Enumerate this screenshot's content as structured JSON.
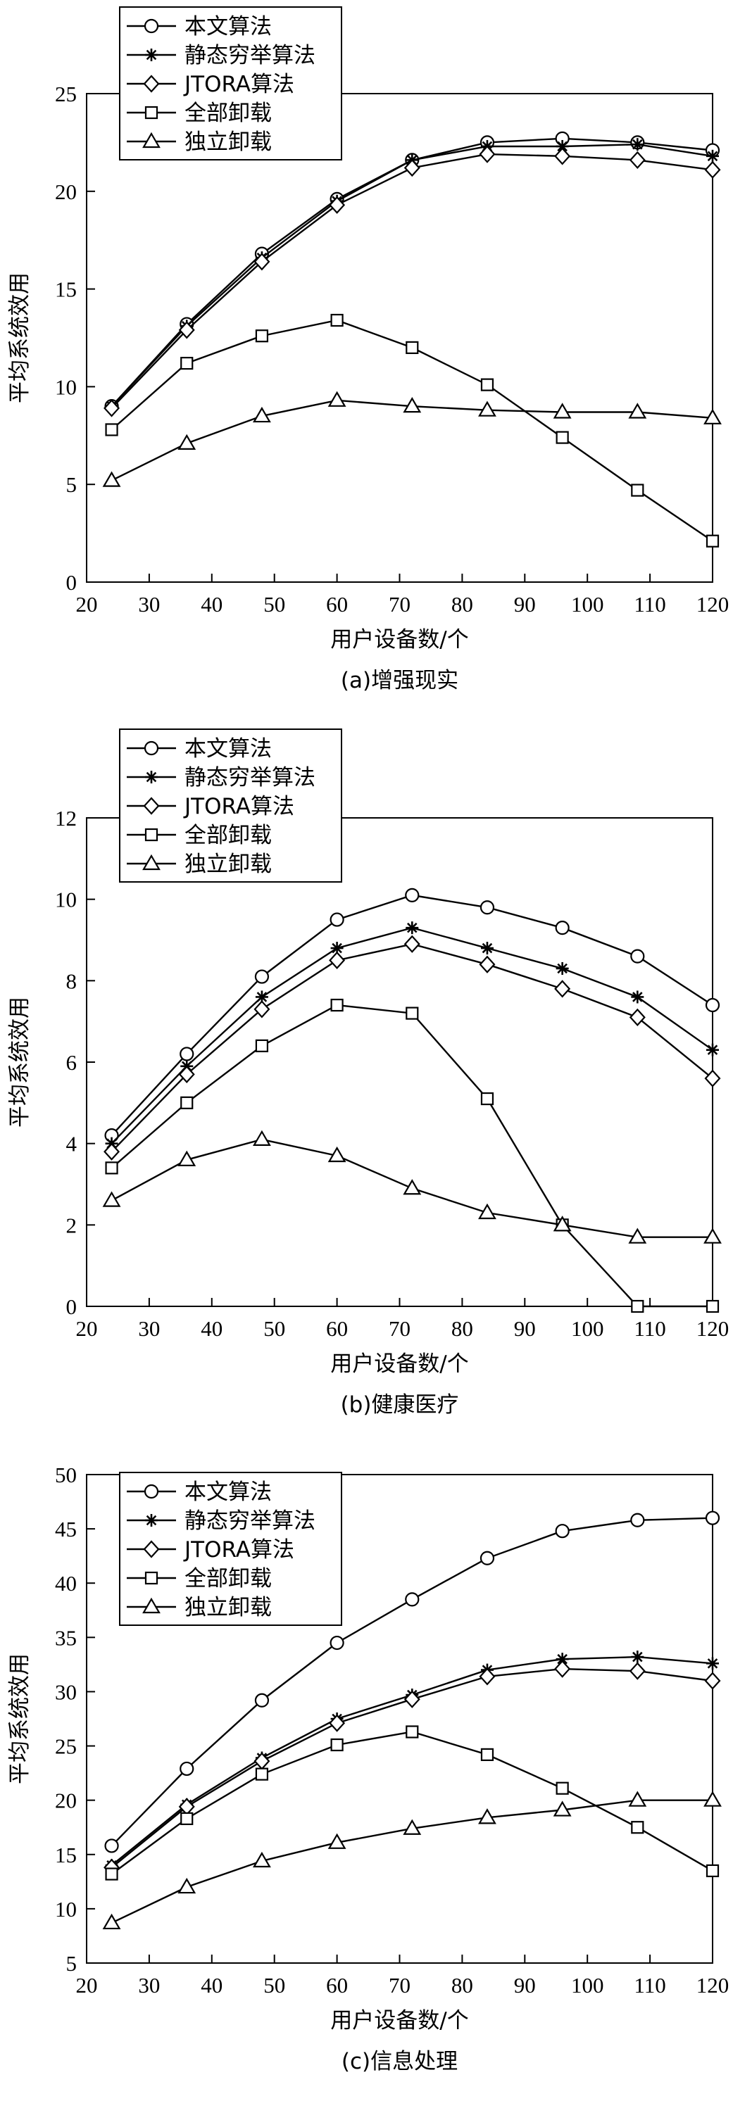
{
  "chart_data": [
    {
      "type": "line",
      "caption": "(a)增强现实",
      "xlabel": "用户设备数/个",
      "ylabel": "平均系统效用",
      "xlim": [
        20,
        120
      ],
      "ylim": [
        0,
        25
      ],
      "xticks": [
        20,
        30,
        40,
        50,
        60,
        70,
        80,
        90,
        100,
        110,
        120
      ],
      "yticks": [
        0,
        5,
        10,
        15,
        20,
        25
      ],
      "grid": false,
      "legend": "top-left",
      "x": [
        24,
        36,
        48,
        60,
        72,
        84,
        96,
        108,
        120
      ],
      "series": [
        {
          "name": "本文算法",
          "marker": "circle",
          "values": [
            9.0,
            13.2,
            16.8,
            19.6,
            21.6,
            22.5,
            22.7,
            22.5,
            22.1
          ]
        },
        {
          "name": "静态穷举算法",
          "marker": "star",
          "values": [
            9.0,
            13.1,
            16.6,
            19.5,
            21.6,
            22.3,
            22.3,
            22.4,
            21.8
          ]
        },
        {
          "name": "JTORA算法",
          "marker": "diamond",
          "values": [
            8.9,
            12.9,
            16.4,
            19.3,
            21.2,
            21.9,
            21.8,
            21.6,
            21.1
          ]
        },
        {
          "name": "全部卸载",
          "marker": "square",
          "values": [
            7.8,
            11.2,
            12.6,
            13.4,
            12.0,
            10.1,
            7.4,
            4.7,
            2.1
          ]
        },
        {
          "name": "独立卸载",
          "marker": "triangle",
          "values": [
            5.2,
            7.1,
            8.5,
            9.3,
            9.0,
            8.8,
            8.7,
            8.7,
            8.4
          ]
        }
      ]
    },
    {
      "type": "line",
      "caption": "(b)健康医疗",
      "xlabel": "用户设备数/个",
      "ylabel": "平均系统效用",
      "xlim": [
        20,
        120
      ],
      "ylim": [
        0,
        12
      ],
      "xticks": [
        20,
        30,
        40,
        50,
        60,
        70,
        80,
        90,
        100,
        110,
        120
      ],
      "yticks": [
        0,
        2,
        4,
        6,
        8,
        10,
        12
      ],
      "grid": false,
      "legend": "top-left",
      "x": [
        24,
        36,
        48,
        60,
        72,
        84,
        96,
        108,
        120
      ],
      "series": [
        {
          "name": "本文算法",
          "marker": "circle",
          "values": [
            4.2,
            6.2,
            8.1,
            9.5,
            10.1,
            9.8,
            9.3,
            8.6,
            7.4
          ]
        },
        {
          "name": "静态穷举算法",
          "marker": "star",
          "values": [
            4.0,
            5.9,
            7.6,
            8.8,
            9.3,
            8.8,
            8.3,
            7.6,
            6.3
          ]
        },
        {
          "name": "JTORA算法",
          "marker": "diamond",
          "values": [
            3.8,
            5.7,
            7.3,
            8.5,
            8.9,
            8.4,
            7.8,
            7.1,
            5.6
          ]
        },
        {
          "name": "全部卸载",
          "marker": "square",
          "values": [
            3.4,
            5.0,
            6.4,
            7.4,
            7.2,
            5.1,
            2.0,
            0.0,
            0.0
          ]
        },
        {
          "name": "独立卸载",
          "marker": "triangle",
          "values": [
            2.6,
            3.6,
            4.1,
            3.7,
            2.9,
            2.3,
            2.0,
            1.7,
            1.7
          ]
        }
      ]
    },
    {
      "type": "line",
      "caption": "(c)信息处理",
      "xlabel": "用户设备数/个",
      "ylabel": "平均系统效用",
      "xlim": [
        20,
        120
      ],
      "ylim": [
        5,
        50
      ],
      "xticks": [
        20,
        30,
        40,
        50,
        60,
        70,
        80,
        90,
        100,
        110,
        120
      ],
      "yticks": [
        5,
        10,
        15,
        20,
        25,
        30,
        35,
        40,
        45,
        50
      ],
      "grid": false,
      "legend": "top-left",
      "x": [
        24,
        36,
        48,
        60,
        72,
        84,
        96,
        108,
        120
      ],
      "series": [
        {
          "name": "本文算法",
          "marker": "circle",
          "values": [
            15.8,
            22.9,
            29.2,
            34.5,
            38.5,
            42.3,
            44.8,
            45.8,
            46.0
          ]
        },
        {
          "name": "静态穷举算法",
          "marker": "star",
          "values": [
            14.0,
            19.6,
            23.9,
            27.5,
            29.7,
            32.0,
            33.0,
            33.2,
            32.6
          ]
        },
        {
          "name": "JTORA算法",
          "marker": "diamond",
          "values": [
            13.8,
            19.4,
            23.6,
            27.1,
            29.3,
            31.4,
            32.1,
            31.9,
            31.0
          ]
        },
        {
          "name": "全部卸载",
          "marker": "square",
          "values": [
            13.2,
            18.3,
            22.4,
            25.1,
            26.3,
            24.2,
            21.1,
            17.5,
            13.5
          ]
        },
        {
          "name": "独立卸载",
          "marker": "triangle",
          "values": [
            8.7,
            12.0,
            14.4,
            16.1,
            17.4,
            18.4,
            19.1,
            20.0,
            20.0
          ]
        }
      ]
    }
  ]
}
